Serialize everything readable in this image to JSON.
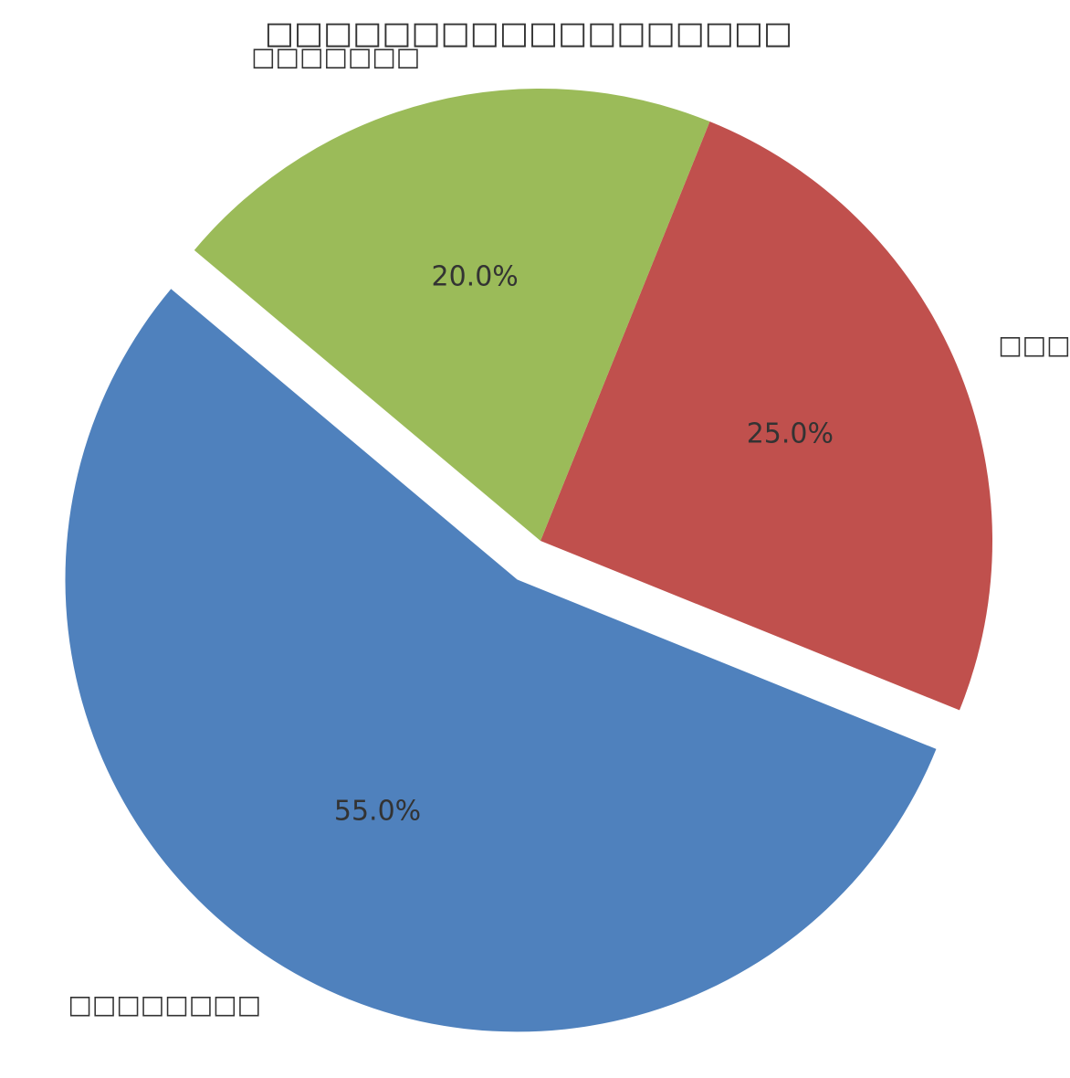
{
  "chart_data": {
    "type": "pie",
    "title": "□□□□□□□□□□□□□□□□□□",
    "categories": [
      "□□□□□□□□",
      "□□□",
      "□□□□□□□"
    ],
    "values": [
      55,
      25,
      20
    ],
    "value_labels": [
      "55.0%",
      "25.0%",
      "20.0%"
    ],
    "colors": [
      "#4f81bd",
      "#c0504d",
      "#9bbb59"
    ]
  }
}
